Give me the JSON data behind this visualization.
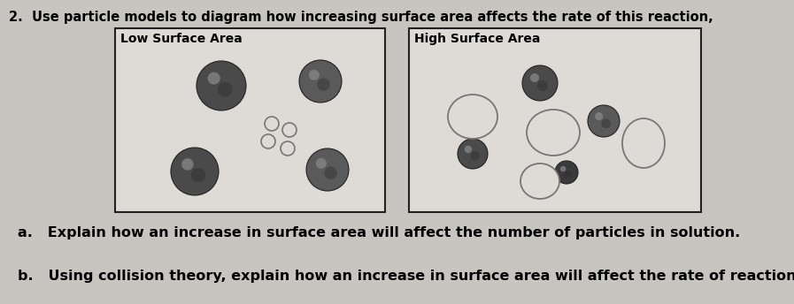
{
  "bg_color": "#c8c4c0",
  "title": "2.  Use particle models to diagram how increasing surface area affects the rate of this reaction,",
  "title_fontsize": 10.5,
  "box_bg": "#dedad6",
  "box_left_label": "Low Surface Area",
  "box_right_label": "High Surface Area",
  "text_a": "a.   Explain how an increase in surface area will affect the number of particles in solution.",
  "text_b": "b.   Using collision theory, explain how an increase in surface area will affect the rate of reaction",
  "text_fontsize": 11.5,
  "label_fontsize": 10
}
